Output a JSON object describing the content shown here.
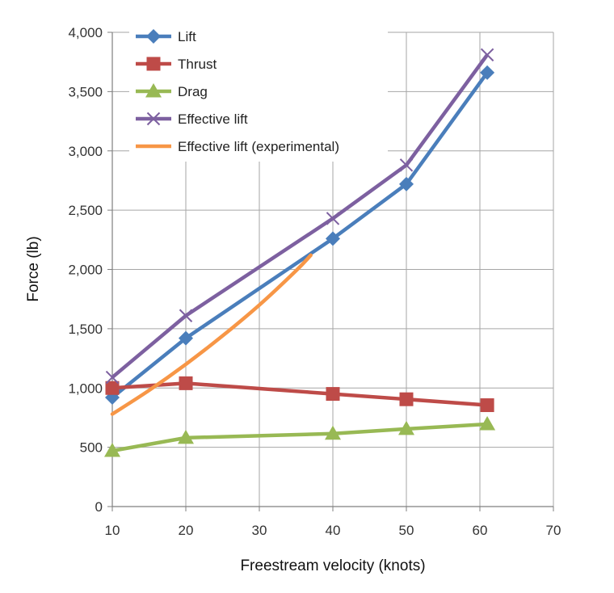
{
  "chart_data": {
    "type": "line",
    "title": "",
    "xlabel": "Freestream velocity (knots)",
    "ylabel": "Force (lb)",
    "xlim": [
      10,
      70
    ],
    "ylim": [
      0,
      4000
    ],
    "x_ticks": [
      10,
      20,
      30,
      40,
      50,
      60,
      70
    ],
    "y_ticks": [
      0,
      500,
      1000,
      1500,
      2000,
      2500,
      3000,
      3500,
      4000
    ],
    "x_tick_labels": [
      "10",
      "20",
      "30",
      "40",
      "50",
      "60",
      "70"
    ],
    "y_tick_labels": [
      "0",
      "500",
      "1,000",
      "1,500",
      "2,000",
      "2,500",
      "3,000",
      "3,500",
      "4,000"
    ],
    "grid": true,
    "legend_position": "top-left",
    "series": [
      {
        "name": "Lift",
        "color": "#4a7ebb",
        "marker": "diamond",
        "points": [
          [
            10,
            920
          ],
          [
            20,
            1420
          ],
          [
            40,
            2260
          ],
          [
            50,
            2720
          ],
          [
            61,
            3660
          ]
        ]
      },
      {
        "name": "Thrust",
        "color": "#be4b48",
        "marker": "square",
        "points": [
          [
            10,
            1000
          ],
          [
            20,
            1040
          ],
          [
            40,
            950
          ],
          [
            50,
            905
          ],
          [
            61,
            855
          ]
        ]
      },
      {
        "name": "Drag",
        "color": "#98b954",
        "marker": "triangle",
        "points": [
          [
            10,
            470
          ],
          [
            20,
            580
          ],
          [
            40,
            615
          ],
          [
            50,
            655
          ],
          [
            61,
            695
          ]
        ]
      },
      {
        "name": "Effective lift",
        "color": "#7d60a0",
        "marker": "x",
        "points": [
          [
            10,
            1090
          ],
          [
            20,
            1610
          ],
          [
            40,
            2430
          ],
          [
            50,
            2880
          ],
          [
            61,
            3810
          ]
        ]
      },
      {
        "name": "Effective lift (experimental)",
        "color": "#f79646",
        "marker": "none",
        "smooth": true,
        "points": [
          [
            10,
            780
          ],
          [
            15,
            980
          ],
          [
            20,
            1200
          ],
          [
            25,
            1440
          ],
          [
            30,
            1700
          ],
          [
            35,
            1990
          ],
          [
            37,
            2120
          ]
        ]
      }
    ]
  }
}
